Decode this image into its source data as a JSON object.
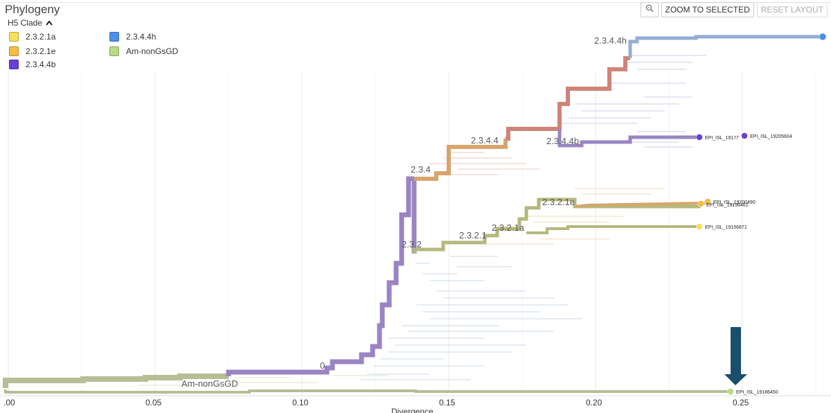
{
  "panel": {
    "title": "Phylogeny"
  },
  "toolbar": {
    "zoom_icon": "magnifier-icon",
    "zoom_selected_label": "ZOOM TO SELECTED",
    "reset_layout_label": "RESET LAYOUT"
  },
  "legend": {
    "heading": "H5 Clade",
    "heading_icon": "chevron-up-icon",
    "items": [
      {
        "label": "2.3.2.1a",
        "color": "#f5e15a"
      },
      {
        "label": "2.3.2.1e",
        "color": "#f7bd3f"
      },
      {
        "label": "2.3.4.4b",
        "color": "#6a3fd8"
      },
      {
        "label": "2.3.4.4h",
        "color": "#4b8fe8"
      },
      {
        "label": "Am-nonGsGD",
        "color": "#b8db82"
      }
    ]
  },
  "tree": {
    "branch_colors": {
      "amnon": "#b7bd95",
      "purple": "#9a84c3",
      "salmon": "#cf8478",
      "orange": "#d7a56c",
      "blue": "#94aed2",
      "olive": "#b5b87c"
    },
    "clade_labels": [
      {
        "text": "2.3.4.4h"
      },
      {
        "text": "2.3.4.4"
      },
      {
        "text": "2.3.4.4b"
      },
      {
        "text": "2.3.4"
      },
      {
        "text": "2.3.2.1e"
      },
      {
        "text": "2.3.2.1a"
      },
      {
        "text": "2.3.2.1"
      },
      {
        "text": "2.3.2"
      },
      {
        "text": "0"
      },
      {
        "text": "Am-nonGsGD"
      }
    ],
    "tips": [
      {
        "label": "EPI_ISL_19177",
        "color": "#6a3fd8"
      },
      {
        "label": "EPI_ISL_19205604",
        "color": "#6a3fd8"
      },
      {
        "label": "EPI_ISL_19200490",
        "color": "#f7bd3f"
      },
      {
        "label": "EPI_ISL_19196461",
        "color": "#f7bd3f"
      },
      {
        "label": "EPI_ISL_19156871",
        "color": "#f5e15a"
      },
      {
        "label": "EPI_ISL_19186450",
        "color": "#b8db82"
      },
      {
        "label": "",
        "color": "#4b8fe8"
      }
    ]
  },
  "axis": {
    "label": "Divergence",
    "ticks": [
      ".00",
      "0.05",
      "0.10",
      "0.15",
      "0.20",
      "0.25"
    ],
    "xmin": 0.0,
    "xmax": 0.28
  },
  "annotation": {
    "arrow_color": "#184f6b",
    "points_to": "EPI_ISL_19186450"
  }
}
